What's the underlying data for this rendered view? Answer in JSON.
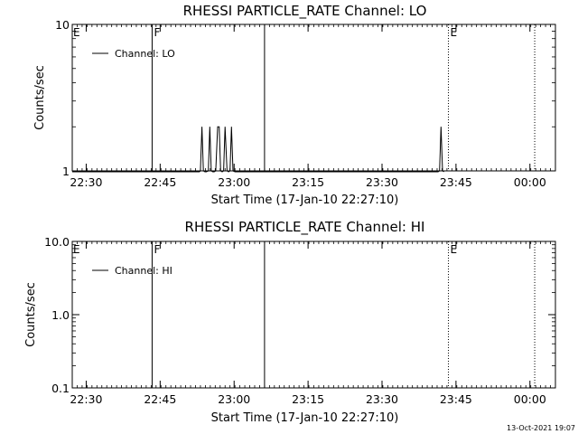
{
  "timestamp": "13-Oct-2021 19:07",
  "chart_data": [
    {
      "type": "line",
      "title": "RHESSI PARTICLE_RATE Channel: LO",
      "xlabel": "Start Time (17-Jan-10 22:27:10)",
      "ylabel": "Counts/sec",
      "x_ticks": [
        "22:30",
        "22:45",
        "23:00",
        "23:15",
        "23:30",
        "23:45",
        "00:00"
      ],
      "x_tick_values": [
        2.83,
        17.83,
        32.83,
        47.83,
        62.83,
        77.83,
        92.83
      ],
      "xlim": [
        0,
        98
      ],
      "y_scale": "log",
      "ylim": [
        1,
        10
      ],
      "y_ticks": [
        "1",
        "10"
      ],
      "y_tick_values": [
        1,
        10
      ],
      "series": [
        {
          "name": "Channel: LO",
          "x": [
            0,
            25.8,
            26.0,
            26.3,
            26.6,
            26.9,
            27.2,
            27.6,
            27.9,
            28.2,
            28.5,
            28.8,
            29.1,
            29.5,
            29.8,
            30.1,
            30.4,
            30.7,
            31.0,
            31.4,
            31.7,
            32.0,
            32.3,
            32.6,
            33.0,
            33.3,
            33.6,
            33.9,
            34.2,
            34.5,
            34.9,
            35.2,
            35.5,
            35.8,
            36.1,
            36.3,
            74.2,
            74.5,
            74.8,
            75.1,
            75.4
          ],
          "y": [
            0.9,
            0.9,
            1,
            2,
            1,
            0.9,
            0.9,
            1,
            2,
            1,
            0.9,
            0.9,
            1,
            2,
            2,
            1,
            0.9,
            1,
            2,
            1,
            0.9,
            1,
            2,
            1,
            0.9,
            0.9,
            0.9,
            0.9,
            0.9,
            0.9,
            0.9,
            0.9,
            0.9,
            0.9,
            0.9,
            0.9,
            0.9,
            1,
            2,
            1,
            0.9
          ]
        }
      ],
      "vertical_lines": [
        {
          "x": 16.2,
          "style": "solid",
          "label": "F"
        },
        {
          "x": 39.0,
          "style": "solid",
          "label": ""
        },
        {
          "x": 76.3,
          "style": "dotted",
          "label": "E"
        },
        {
          "x": 93.8,
          "style": "dotted",
          "label": ""
        }
      ],
      "flags": [
        {
          "x": 0,
          "label": "E"
        }
      ]
    },
    {
      "type": "line",
      "title": "RHESSI PARTICLE_RATE Channel: HI",
      "xlabel": "Start Time (17-Jan-10 22:27:10)",
      "ylabel": "Counts/sec",
      "x_ticks": [
        "22:30",
        "22:45",
        "23:00",
        "23:15",
        "23:30",
        "23:45",
        "00:00"
      ],
      "x_tick_values": [
        2.83,
        17.83,
        32.83,
        47.83,
        62.83,
        77.83,
        92.83
      ],
      "xlim": [
        0,
        98
      ],
      "y_scale": "log",
      "ylim": [
        0.1,
        10
      ],
      "y_ticks": [
        "0.1",
        "1.0",
        "10.0"
      ],
      "y_tick_values": [
        0.1,
        1,
        10
      ],
      "series": [
        {
          "name": "Channel: HI",
          "x": [],
          "y": []
        }
      ],
      "vertical_lines": [
        {
          "x": 16.2,
          "style": "solid",
          "label": "F"
        },
        {
          "x": 39.0,
          "style": "solid",
          "label": ""
        },
        {
          "x": 76.3,
          "style": "dotted",
          "label": "E"
        },
        {
          "x": 93.8,
          "style": "dotted",
          "label": ""
        }
      ],
      "flags": [
        {
          "x": 0,
          "label": "E"
        }
      ]
    }
  ]
}
